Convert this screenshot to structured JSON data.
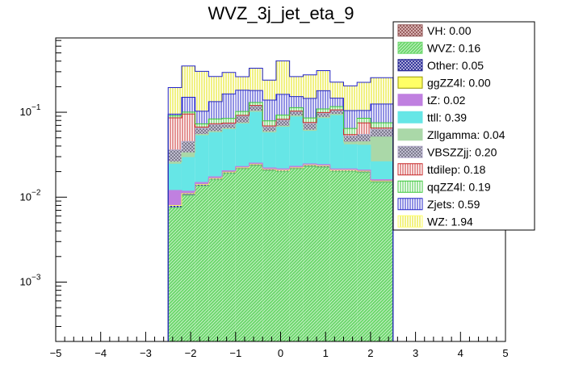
{
  "chart_data": {
    "type": "bar",
    "title": "WVZ_3j_jet_eta_9",
    "xlabel": "",
    "ylabel": "",
    "stacked": true,
    "log_y": true,
    "xlim": [
      -5,
      5
    ],
    "ylim": [
      0.0002,
      0.75
    ],
    "bin_edges": [
      -2.5,
      -2.2,
      -1.9,
      -1.6,
      -1.3,
      -1.0,
      -0.7,
      -0.4,
      -0.1,
      0.2,
      0.5,
      0.8,
      1.1,
      1.4,
      1.7,
      2.0,
      2.5
    ],
    "x_ticks": [
      {
        "value": -5,
        "label": "−5"
      },
      {
        "value": -4,
        "label": "−4"
      },
      {
        "value": -3,
        "label": "−3"
      },
      {
        "value": -2,
        "label": "−2"
      },
      {
        "value": -1,
        "label": "−1"
      },
      {
        "value": 0,
        "label": "0"
      },
      {
        "value": 1,
        "label": "1"
      },
      {
        "value": 2,
        "label": "2"
      },
      {
        "value": 3,
        "label": "3"
      },
      {
        "value": 4,
        "label": "4"
      },
      {
        "value": 5,
        "label": "5"
      }
    ],
    "y_ticks": [
      {
        "value": 0.1,
        "base": "10",
        "exp": "−1"
      },
      {
        "value": 0.01,
        "base": "10",
        "exp": "−2"
      },
      {
        "value": 0.001,
        "base": "10",
        "exp": "−3"
      }
    ],
    "series": [
      {
        "name": "VH: 0.00",
        "color": "#8b4c4c",
        "hatch": "cross",
        "values": [
          0,
          0,
          0,
          0,
          0,
          0,
          0,
          0,
          0,
          0,
          0,
          0,
          0,
          0,
          0,
          0
        ]
      },
      {
        "name": "WVZ: 0.16",
        "color": "#6fd86f",
        "hatch": "diag",
        "values": [
          0.0075,
          0.0105,
          0.0135,
          0.016,
          0.019,
          0.0215,
          0.0235,
          0.0205,
          0.02,
          0.0215,
          0.023,
          0.0225,
          0.02,
          0.02,
          0.0195,
          0.015
        ]
      },
      {
        "name": "Other: 0.05",
        "color": "#1a1a8c",
        "hatch": "cross",
        "values": [
          0.0005,
          0.0005,
          0.0006,
          0.0006,
          0.0007,
          0.0007,
          0.0008,
          0.0007,
          0.0007,
          0.0007,
          0.0008,
          0.0008,
          0.0007,
          0.0007,
          0.0007,
          0.0005
        ]
      },
      {
        "name": "ggZZ4l: 0.00",
        "color": "#ffff66",
        "hatch": "solid",
        "values": [
          0,
          0,
          0,
          0,
          0,
          0,
          0,
          0,
          0,
          0,
          0,
          0,
          0,
          0,
          0,
          0
        ]
      },
      {
        "name": "tZ: 0.02",
        "color": "#c080e0",
        "hatch": "solid",
        "values": [
          0.004,
          0.0008,
          0.0008,
          0.0008,
          0.0008,
          0.0008,
          0.0009,
          0.0009,
          0.0009,
          0.0009,
          0.0009,
          0.0009,
          0.0008,
          0.0008,
          0.0007,
          0.0006
        ]
      },
      {
        "name": "ttll: 0.39",
        "color": "#66e6e6",
        "hatch": "solid",
        "values": [
          0.0125,
          0.0175,
          0.038,
          0.04,
          0.042,
          0.05,
          0.075,
          0.035,
          0.045,
          0.065,
          0.035,
          0.06,
          0.07,
          0.02,
          0.02,
          0.01
        ]
      },
      {
        "name": "Zllgamma: 0.04",
        "color": "#aad8a8",
        "hatch": "solid",
        "values": [
          0.0015,
          0.004,
          0.002,
          0.002,
          0.002,
          0.002,
          0.003,
          0.002,
          0.002,
          0.003,
          0.002,
          0.003,
          0.003,
          0.003,
          0.004,
          0.025
        ]
      },
      {
        "name": "VBSZZjj: 0.20",
        "color": "#b0a8c8",
        "hatch": "cross",
        "values": [
          0.01,
          0.012,
          0.01,
          0.012,
          0.008,
          0.015,
          0.015,
          0.008,
          0.012,
          0.01,
          0.012,
          0.01,
          0.01,
          0.008,
          0.01,
          0.012
        ]
      },
      {
        "name": "ttdilep: 0.18",
        "color": "#c82828",
        "hatch": "vert",
        "values": [
          0.05,
          0.05,
          0.002,
          0.002,
          0.002,
          0.002,
          0.002,
          0.002,
          0.002,
          0.002,
          0.002,
          0.002,
          0.002,
          0.002,
          0.02,
          0.002
        ]
      },
      {
        "name": "qqZZ4l: 0.19",
        "color": "#39c739",
        "hatch": "vert",
        "values": [
          0.005,
          0.005,
          0.006,
          0.01,
          0.01,
          0.01,
          0.01,
          0.01,
          0.01,
          0.01,
          0.01,
          0.01,
          0.01,
          0.01,
          0.01,
          0.01
        ]
      },
      {
        "name": "Zjets: 0.59",
        "color": "#2424c8",
        "hatch": "vert",
        "values": [
          0.004,
          0.05,
          0.03,
          0.05,
          0.08,
          0.08,
          0.05,
          0.06,
          0.07,
          0.04,
          0.06,
          0.07,
          0.03,
          0.04,
          0.02,
          0.05
        ]
      },
      {
        "name": "WZ: 1.94",
        "color": "#ffff66",
        "hatch": "vert",
        "values": [
          0.1,
          0.2,
          0.2,
          0.13,
          0.13,
          0.08,
          0.15,
          0.1,
          0.24,
          0.11,
          0.13,
          0.13,
          0.08,
          0.1,
          0.12,
          0.13
        ]
      }
    ]
  }
}
